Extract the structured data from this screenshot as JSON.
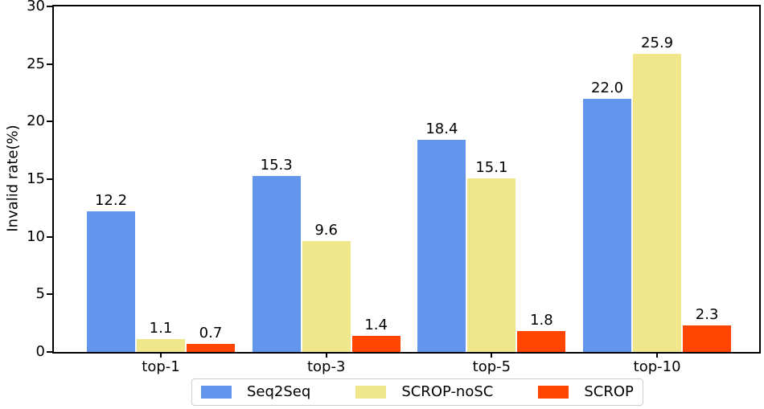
{
  "figure": {
    "background": "#ffffff",
    "frame_color": "#000000"
  },
  "chart_data": {
    "type": "bar",
    "title": "",
    "xlabel": "",
    "ylabel": "Invalid rate(%)",
    "categories": [
      "top-1",
      "top-3",
      "top-5",
      "top-10"
    ],
    "series": [
      {
        "name": "Seq2Seq",
        "color": "#6495ED",
        "values": [
          12.2,
          15.3,
          18.4,
          22.0
        ]
      },
      {
        "name": "SCROP-noSC",
        "color": "#F0E68C",
        "values": [
          1.1,
          9.6,
          15.1,
          25.9
        ]
      },
      {
        "name": "SCROP",
        "color": "#FF4500",
        "values": [
          0.7,
          1.4,
          1.8,
          2.3
        ]
      }
    ],
    "ylim": [
      0,
      30
    ],
    "yticks": [
      0,
      5,
      10,
      15,
      20,
      25,
      30
    ],
    "grid": false,
    "value_labels_shown": true,
    "legend_position": "bottom-center"
  }
}
